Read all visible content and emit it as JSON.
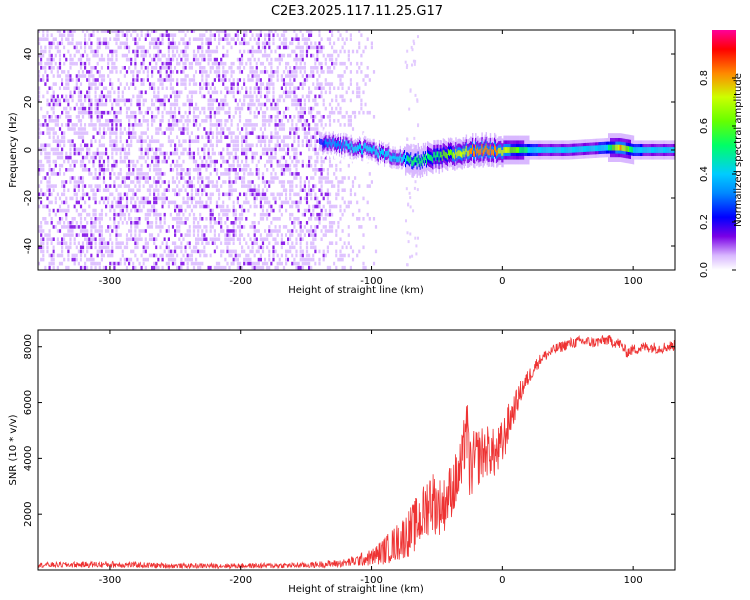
{
  "title": "C2E3.2025.117.11.25.G17",
  "chart_data": [
    {
      "type": "heatmap",
      "xlabel": "Height of straight line (km)",
      "ylabel": "Frequency (Hz)",
      "xlim": [
        -355,
        132
      ],
      "ylim": [
        -50,
        50
      ],
      "x_ticks": [
        -300,
        -200,
        -100,
        0,
        100
      ],
      "y_ticks": [
        -40,
        -20,
        0,
        20,
        40
      ],
      "grid": false,
      "colorbar": {
        "label": "Normalized spectral amplitude",
        "range": [
          0,
          1
        ],
        "ticks": [
          0.0,
          0.2,
          0.4,
          0.6,
          0.8
        ],
        "colormap": [
          "#ffffff",
          "#7a00e6",
          "#0000ff",
          "#00ccff",
          "#00ff66",
          "#ccff00",
          "#ff8800",
          "#ff0000",
          "#ff0099"
        ]
      },
      "noise_region_x": [
        -355,
        -115
      ],
      "signal_band": {
        "x": [
          -140,
          -120,
          -100,
          -90,
          -80,
          -75,
          -70,
          -60,
          -50,
          -40,
          -30,
          -20,
          -10,
          0,
          20,
          50,
          80,
          90,
          100,
          132
        ],
        "center_freq": [
          3,
          2,
          0,
          -2,
          -3,
          -4,
          -5,
          -4,
          -3,
          -2,
          -1,
          0,
          0,
          0,
          0,
          0,
          1,
          1,
          0,
          0
        ],
        "amplitude": [
          0.3,
          0.4,
          0.45,
          0.45,
          0.4,
          0.5,
          0.55,
          0.55,
          0.6,
          0.7,
          0.8,
          0.85,
          0.85,
          0.8,
          0.5,
          0.45,
          0.5,
          0.85,
          0.5,
          0.45
        ]
      }
    },
    {
      "type": "line",
      "xlabel": "Height of straight line (km)",
      "ylabel": "SNR (10 * v/v)",
      "xlim": [
        -355,
        132
      ],
      "ylim": [
        0,
        8600
      ],
      "x_ticks": [
        -300,
        -200,
        -100,
        0,
        100
      ],
      "y_ticks": [
        2000,
        4000,
        6000,
        8000
      ],
      "grid": false,
      "series": [
        {
          "color": "#ee3333",
          "x": [
            -355,
            -300,
            -250,
            -200,
            -150,
            -120,
            -100,
            -90,
            -80,
            -70,
            -60,
            -55,
            -50,
            -45,
            -40,
            -35,
            -30,
            -28,
            -25,
            -20,
            -15,
            -10,
            -5,
            0,
            5,
            10,
            15,
            20,
            25,
            30,
            40,
            50,
            60,
            70,
            80,
            90,
            95,
            100,
            110,
            120,
            132
          ],
          "y": [
            180,
            200,
            150,
            150,
            170,
            250,
            450,
            700,
            1000,
            1400,
            2000,
            2600,
            2300,
            2300,
            2800,
            3200,
            3800,
            5500,
            3600,
            4000,
            4200,
            4300,
            4100,
            4500,
            5300,
            5900,
            6500,
            6900,
            7300,
            7600,
            7900,
            8100,
            8200,
            8150,
            8250,
            8100,
            7800,
            7900,
            8000,
            7950,
            8050
          ],
          "noise": [
            90,
            120,
            90,
            90,
            100,
            150,
            300,
            500,
            700,
            900,
            1100,
            1200,
            1100,
            1000,
            1000,
            1100,
            1200,
            1400,
            1200,
            1100,
            1000,
            900,
            900,
            900,
            700,
            500,
            400,
            300,
            250,
            200,
            200,
            200,
            200,
            200,
            200,
            200,
            200,
            200,
            200,
            200,
            200
          ]
        }
      ]
    }
  ]
}
